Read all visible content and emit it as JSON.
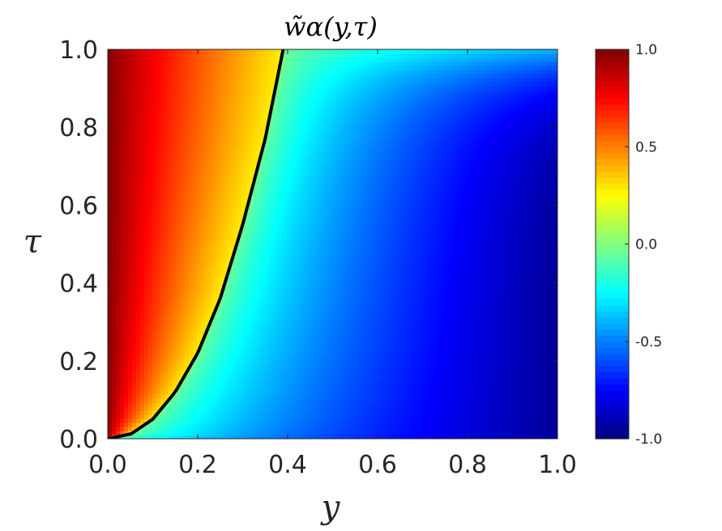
{
  "chart_data": {
    "type": "heatmap",
    "title": "w̃α(y,τ)",
    "xlabel": "y",
    "ylabel": "τ",
    "xlim": [
      0.0,
      1.0
    ],
    "ylim": [
      0.0,
      1.0
    ],
    "x_ticks": [
      0.0,
      0.2,
      0.4,
      0.6,
      0.8,
      1.0
    ],
    "y_ticks": [
      0.0,
      0.2,
      0.4,
      0.6,
      0.8,
      1.0
    ],
    "x_tick_labels": [
      "0.0",
      "0.2",
      "0.4",
      "0.6",
      "0.8",
      "1.0"
    ],
    "y_tick_labels": [
      "0.0",
      "0.2",
      "0.4",
      "0.6",
      "0.8",
      "1.0"
    ],
    "colormap": "jet",
    "colorbar": {
      "range": [
        -1.0,
        1.0
      ],
      "ticks": [
        -1.0,
        -0.5,
        0.0,
        0.5,
        1.0
      ],
      "tick_labels": [
        "-1.0",
        "-0.5",
        "0.0",
        "0.5",
        "1.0"
      ],
      "placement": "right"
    },
    "zero_contour": {
      "color": "#000000",
      "points": [
        [
          0.0,
          0.0
        ],
        [
          0.05,
          0.011
        ],
        [
          0.1,
          0.05
        ],
        [
          0.15,
          0.12
        ],
        [
          0.2,
          0.22
        ],
        [
          0.25,
          0.36
        ],
        [
          0.3,
          0.55
        ],
        [
          0.35,
          0.77
        ],
        [
          0.39,
          1.0
        ]
      ]
    },
    "grid": false
  }
}
